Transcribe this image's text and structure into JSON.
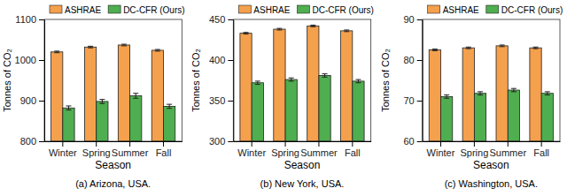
{
  "chart_data": [
    {
      "type": "bar",
      "title": "(a) Arizona, USA.",
      "x_label": "Season",
      "y_label": "Tonnes of CO₂",
      "categories": [
        "Winter",
        "Spring",
        "Summer",
        "Fall"
      ],
      "series": [
        {
          "name": "ASHRAE",
          "color": "#f5a04c",
          "values": [
            1020,
            1032,
            1037,
            1024
          ],
          "errors": [
            2,
            2,
            2,
            2
          ]
        },
        {
          "name": "DC-CFR (Ours)",
          "color": "#4fae4f",
          "values": [
            882,
            898,
            912,
            886
          ],
          "errors": [
            5,
            5,
            6,
            5
          ]
        }
      ],
      "ylim": [
        800,
        1100
      ],
      "yticks": [
        800,
        900,
        1000,
        1100
      ],
      "grid": false,
      "legend": "top"
    },
    {
      "type": "bar",
      "title": "(b) New York, USA.",
      "x_label": "Season",
      "y_label": "Tonnes of CO₂",
      "categories": [
        "Winter",
        "Spring",
        "Summer",
        "Fall"
      ],
      "series": [
        {
          "name": "ASHRAE",
          "color": "#f5a04c",
          "values": [
            433,
            438,
            442,
            436
          ],
          "errors": [
            1,
            1,
            1,
            1
          ]
        },
        {
          "name": "DC-CFR (Ours)",
          "color": "#4fae4f",
          "values": [
            372,
            376,
            381,
            374
          ],
          "errors": [
            2,
            2,
            2,
            2
          ]
        }
      ],
      "ylim": [
        300,
        450
      ],
      "yticks": [
        300,
        350,
        400,
        450
      ],
      "grid": false,
      "legend": "top"
    },
    {
      "type": "bar",
      "title": "(c) Washington, USA.",
      "x_label": "Season",
      "y_label": "Tonnes of CO₂",
      "categories": [
        "Winter",
        "Spring",
        "Summer",
        "Fall"
      ],
      "series": [
        {
          "name": "ASHRAE",
          "color": "#f5a04c",
          "values": [
            82.5,
            83,
            83.5,
            83
          ],
          "errors": [
            0.2,
            0.2,
            0.2,
            0.2
          ]
        },
        {
          "name": "DC-CFR (Ours)",
          "color": "#4fae4f",
          "values": [
            71,
            71.8,
            72.6,
            71.8
          ],
          "errors": [
            0.4,
            0.4,
            0.4,
            0.4
          ]
        }
      ],
      "ylim": [
        60,
        90
      ],
      "yticks": [
        60,
        70,
        80,
        90
      ],
      "grid": false,
      "legend": "top"
    }
  ]
}
